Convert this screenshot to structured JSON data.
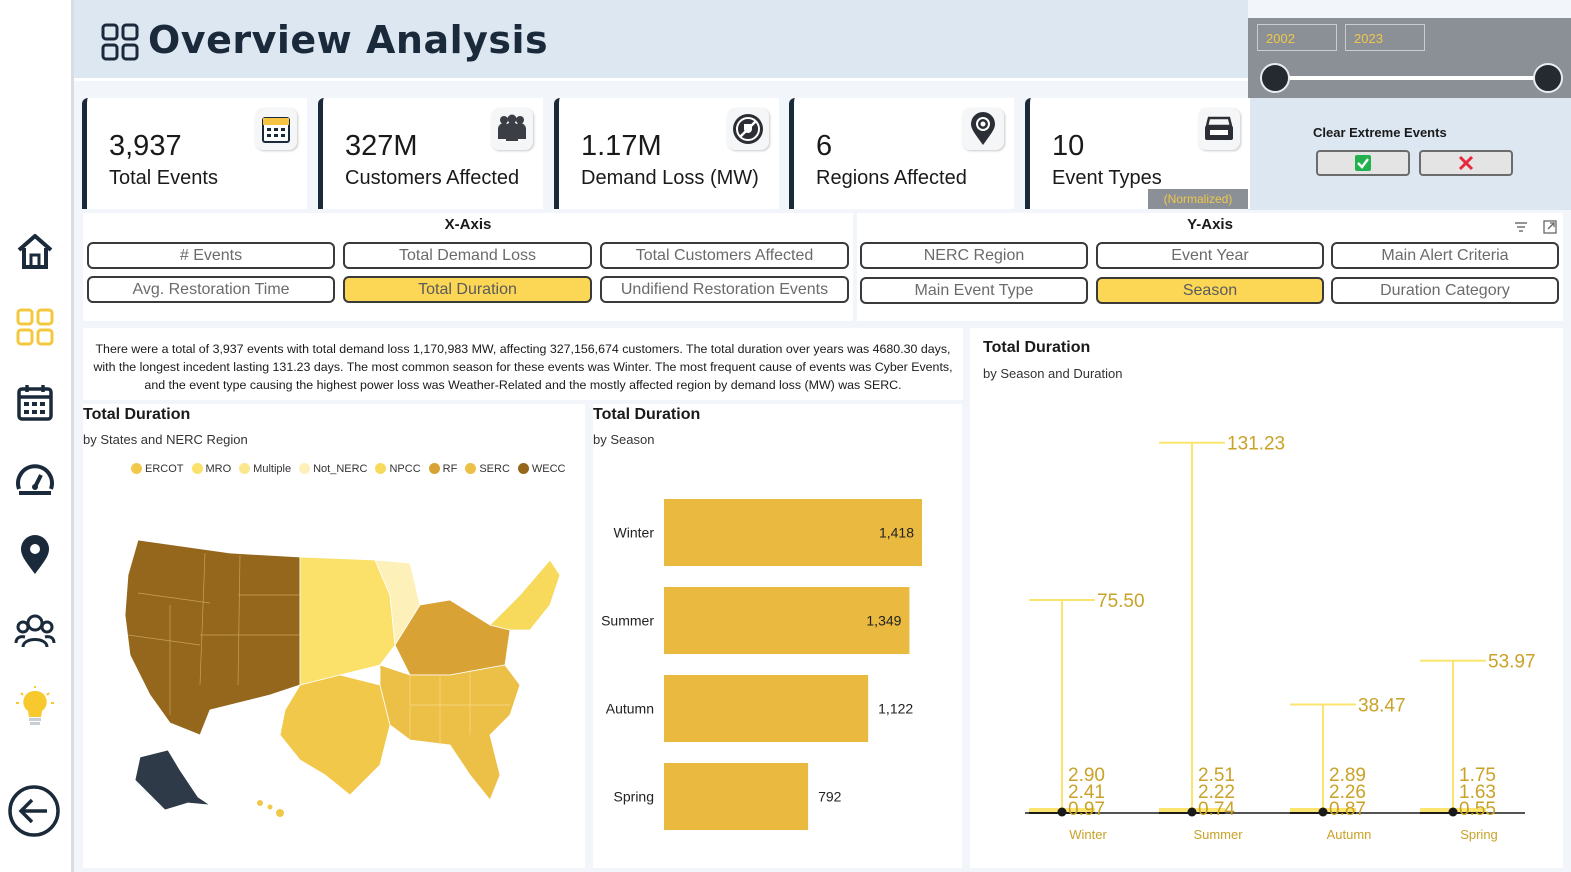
{
  "header": {
    "title": "Overview Analysis"
  },
  "year_slider": {
    "start": "2002",
    "end": "2023"
  },
  "clear_extreme": {
    "label": "Clear Extreme Events"
  },
  "kpis": [
    {
      "value": "3,937",
      "label": "Total Events",
      "icon": "calendar-icon"
    },
    {
      "value": "327M",
      "label": "Customers Affected",
      "icon": "people-group-icon"
    },
    {
      "value": "1.17M",
      "label": "Demand Loss (MW)",
      "icon": "no-power-icon"
    },
    {
      "value": "6",
      "label": "Regions Affected",
      "icon": "map-pin-icon"
    },
    {
      "value": "10",
      "label": "Event Types",
      "icon": "tray-icon"
    }
  ],
  "normalized_label": "(Normalized)",
  "x_axis": {
    "title": "X-Axis",
    "options": [
      "# Events",
      "Total Demand Loss",
      "Total Customers Affected",
      "Avg. Restoration Time",
      "Total Duration",
      "Undifiend Restoration Events"
    ],
    "selected": "Total Duration"
  },
  "y_axis": {
    "title": "Y-Axis",
    "options": [
      "NERC Region",
      "Event Year",
      "Main Alert Criteria",
      "Main Event Type",
      "Season",
      "Duration Category"
    ],
    "selected": "Season"
  },
  "narrative": "There were a total of 3,937 events with total demand loss 1,170,983 MW, affecting 327,156,674 customers. The total duration over years was 4680.30 days, with the longest incedent lasting 131.23 days. The most common season for these events was Winter. The most frequent cause of events was Cyber Events, and the event type causing the highest power loss was Weather-Related and the mostly affected region by demand loss (MW) was SERC.",
  "map_panel": {
    "title": "Total Duration",
    "subtitle": "by States and NERC Region",
    "legend": [
      {
        "name": "ERCOT",
        "color": "#f2c84b"
      },
      {
        "name": "MRO",
        "color": "#fbe06a"
      },
      {
        "name": "Multiple",
        "color": "#fbe88e"
      },
      {
        "name": "Not_NERC",
        "color": "#fdf0b8"
      },
      {
        "name": "NPCC",
        "color": "#f7d95c"
      },
      {
        "name": "RF",
        "color": "#d8a234"
      },
      {
        "name": "SERC",
        "color": "#ecbf47"
      },
      {
        "name": "WECC",
        "color": "#94671c"
      }
    ]
  },
  "bar_panel": {
    "title": "Total Duration",
    "subtitle": "by Season"
  },
  "range_panel": {
    "title": "Total Duration",
    "subtitle": "by Season and Duration"
  },
  "chart_data": [
    {
      "type": "bar",
      "title": "Total Duration",
      "subtitle": "by Season",
      "orientation": "horizontal",
      "categories": [
        "Winter",
        "Summer",
        "Autumn",
        "Spring"
      ],
      "values": [
        1418,
        1349,
        1122,
        792
      ],
      "value_labels": [
        "1,418",
        "1,349",
        "1,122",
        "792"
      ],
      "color": "#e9b940"
    },
    {
      "type": "scatter",
      "title": "Total Duration",
      "subtitle": "by Season and Duration",
      "categories": [
        "Winter",
        "Summer",
        "Autumn",
        "Spring"
      ],
      "series": [
        {
          "values": [
            75.5,
            131.23,
            38.47,
            53.97
          ]
        },
        {
          "values": [
            2.9,
            2.51,
            2.89,
            1.75
          ]
        },
        {
          "values": [
            2.41,
            2.22,
            2.26,
            1.63
          ]
        },
        {
          "values": [
            0.97,
            0.74,
            0.87,
            0.55
          ]
        }
      ],
      "labels": [
        [
          "75.50",
          "131.23",
          "38.47",
          "53.97"
        ],
        [
          "2.90",
          "2.51",
          "2.89",
          "1.75"
        ],
        [
          "2.41",
          "2.22",
          "2.26",
          "1.63"
        ],
        [
          "0.97",
          "0.74",
          "0.87",
          "0.55"
        ]
      ],
      "ylim": [
        0,
        140
      ],
      "color": "#fbe56e",
      "label_color": "#c9a227"
    }
  ]
}
